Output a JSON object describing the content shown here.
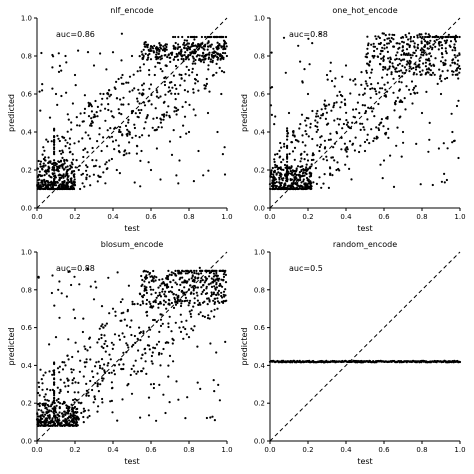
{
  "figure": {
    "background": "#ffffff",
    "point_color": "#000000",
    "diagonal_color": "#000000"
  },
  "chart_data": [
    {
      "type": "scatter",
      "title": "nlf_encode",
      "xlabel": "test",
      "ylabel": "predicted",
      "annotation": "auc=0.86",
      "xlim": [
        0.0,
        1.0
      ],
      "ylim": [
        0.0,
        1.0
      ],
      "xticks": [
        "0.0",
        "0.2",
        "0.4",
        "0.6",
        "0.8",
        "1.0"
      ],
      "yticks": [
        "0.0",
        "0.2",
        "0.4",
        "0.6",
        "0.8",
        "1.0"
      ],
      "reference_line": "y=x (dashed)",
      "points": [
        [
          0.02,
          0.12
        ],
        [
          0.04,
          0.14
        ],
        [
          0.06,
          0.12
        ],
        [
          0.08,
          0.13
        ],
        [
          0.1,
          0.12
        ],
        [
          0.12,
          0.15
        ],
        [
          0.14,
          0.12
        ],
        [
          0.16,
          0.18
        ],
        [
          0.18,
          0.14
        ],
        [
          0.2,
          0.12
        ],
        [
          0.22,
          0.2
        ],
        [
          0.24,
          0.13
        ],
        [
          0.26,
          0.16
        ],
        [
          0.28,
          0.12
        ],
        [
          0.3,
          0.22
        ],
        [
          0.32,
          0.14
        ],
        [
          0.34,
          0.3
        ],
        [
          0.36,
          0.13
        ],
        [
          0.38,
          0.25
        ],
        [
          0.4,
          0.35
        ],
        [
          0.42,
          0.2
        ],
        [
          0.44,
          0.4
        ],
        [
          0.46,
          0.28
        ],
        [
          0.48,
          0.45
        ],
        [
          0.5,
          0.5
        ],
        [
          0.52,
          0.38
        ],
        [
          0.54,
          0.55
        ],
        [
          0.56,
          0.6
        ],
        [
          0.58,
          0.48
        ],
        [
          0.6,
          0.65
        ],
        [
          0.62,
          0.7
        ],
        [
          0.64,
          0.58
        ],
        [
          0.66,
          0.72
        ],
        [
          0.68,
          0.75
        ],
        [
          0.7,
          0.66
        ],
        [
          0.72,
          0.78
        ],
        [
          0.74,
          0.8
        ],
        [
          0.76,
          0.7
        ],
        [
          0.78,
          0.82
        ],
        [
          0.8,
          0.84
        ],
        [
          0.82,
          0.76
        ],
        [
          0.84,
          0.85
        ],
        [
          0.86,
          0.86
        ],
        [
          0.88,
          0.8
        ],
        [
          0.9,
          0.85
        ],
        [
          0.92,
          0.86
        ],
        [
          0.94,
          0.82
        ],
        [
          0.96,
          0.86
        ],
        [
          0.98,
          0.85
        ],
        [
          0.1,
          0.6
        ],
        [
          0.15,
          0.8
        ],
        [
          0.2,
          0.7
        ],
        [
          0.25,
          0.5
        ],
        [
          0.3,
          0.75
        ],
        [
          0.35,
          0.6
        ],
        [
          0.4,
          0.82
        ],
        [
          0.45,
          0.7
        ],
        [
          0.5,
          0.8
        ],
        [
          0.55,
          0.3
        ],
        [
          0.6,
          0.2
        ],
        [
          0.65,
          0.15
        ],
        [
          0.7,
          0.35
        ],
        [
          0.75,
          0.25
        ],
        [
          0.8,
          0.4
        ],
        [
          0.85,
          0.3
        ],
        [
          0.9,
          0.5
        ],
        [
          0.95,
          0.4
        ],
        [
          0.12,
          0.3
        ],
        [
          0.18,
          0.45
        ],
        [
          0.22,
          0.35
        ],
        [
          0.28,
          0.55
        ],
        [
          0.33,
          0.42
        ],
        [
          0.38,
          0.62
        ],
        [
          0.43,
          0.52
        ],
        [
          0.47,
          0.66
        ],
        [
          0.53,
          0.72
        ],
        [
          0.58,
          0.78
        ],
        [
          0.63,
          0.82
        ],
        [
          0.67,
          0.84
        ],
        [
          0.72,
          0.85
        ],
        [
          0.77,
          0.86
        ],
        [
          0.83,
          0.83
        ],
        [
          0.87,
          0.78
        ],
        [
          0.93,
          0.7
        ],
        [
          0.97,
          0.6
        ]
      ],
      "cluster": {
        "x": [
          0.0,
          0.2
        ],
        "y": [
          0.1,
          0.25
        ]
      },
      "band": {
        "x": [
          0.55,
          1.0
        ],
        "y": [
          0.78,
          0.87
        ]
      }
    },
    {
      "type": "scatter",
      "title": "one_hot_encode",
      "xlabel": "test",
      "ylabel": "predicted",
      "annotation": "auc=0.88",
      "xlim": [
        0.0,
        1.0
      ],
      "ylim": [
        0.0,
        1.0
      ],
      "xticks": [
        "0.0",
        "0.2",
        "0.4",
        "0.6",
        "0.8",
        "1.0"
      ],
      "yticks": [
        "0.0",
        "0.2",
        "0.4",
        "0.6",
        "0.8",
        "1.0"
      ],
      "reference_line": "y=x (dashed)",
      "points": [
        [
          0.02,
          0.12
        ],
        [
          0.05,
          0.15
        ],
        [
          0.08,
          0.13
        ],
        [
          0.11,
          0.18
        ],
        [
          0.14,
          0.2
        ],
        [
          0.17,
          0.22
        ],
        [
          0.2,
          0.25
        ],
        [
          0.23,
          0.28
        ],
        [
          0.26,
          0.3
        ],
        [
          0.29,
          0.32
        ],
        [
          0.32,
          0.36
        ],
        [
          0.35,
          0.4
        ],
        [
          0.38,
          0.42
        ],
        [
          0.41,
          0.45
        ],
        [
          0.44,
          0.48
        ],
        [
          0.47,
          0.5
        ],
        [
          0.5,
          0.54
        ],
        [
          0.53,
          0.58
        ],
        [
          0.56,
          0.6
        ],
        [
          0.59,
          0.63
        ],
        [
          0.62,
          0.66
        ],
        [
          0.65,
          0.68
        ],
        [
          0.68,
          0.72
        ],
        [
          0.71,
          0.74
        ],
        [
          0.74,
          0.77
        ],
        [
          0.77,
          0.8
        ],
        [
          0.8,
          0.82
        ],
        [
          0.83,
          0.84
        ],
        [
          0.86,
          0.86
        ],
        [
          0.89,
          0.87
        ],
        [
          0.92,
          0.88
        ],
        [
          0.95,
          0.9
        ],
        [
          0.98,
          0.9
        ],
        [
          0.1,
          0.5
        ],
        [
          0.2,
          0.6
        ],
        [
          0.3,
          0.7
        ],
        [
          0.4,
          0.75
        ],
        [
          0.5,
          0.3
        ],
        [
          0.6,
          0.25
        ],
        [
          0.7,
          0.4
        ],
        [
          0.8,
          0.5
        ],
        [
          0.9,
          0.6
        ],
        [
          0.15,
          0.35
        ],
        [
          0.25,
          0.45
        ],
        [
          0.35,
          0.2
        ],
        [
          0.45,
          0.65
        ],
        [
          0.55,
          0.8
        ],
        [
          0.65,
          0.85
        ],
        [
          0.75,
          0.55
        ],
        [
          0.85,
          0.7
        ],
        [
          0.95,
          0.75
        ]
      ],
      "cluster": {
        "x": [
          0.0,
          0.22
        ],
        "y": [
          0.1,
          0.22
        ]
      },
      "band": {
        "x": [
          0.5,
          1.0
        ],
        "y": [
          0.7,
          0.92
        ]
      }
    },
    {
      "type": "scatter",
      "title": "blosum_encode",
      "xlabel": "test",
      "ylabel": "predicted",
      "annotation": "auc=0.88",
      "xlim": [
        0.0,
        1.0
      ],
      "ylim": [
        0.0,
        1.0
      ],
      "xticks": [
        "0.0",
        "0.2",
        "0.4",
        "0.6",
        "0.8",
        "1.0"
      ],
      "yticks": [
        "0.0",
        "0.2",
        "0.4",
        "0.6",
        "0.8",
        "1.0"
      ],
      "reference_line": "y=x (dashed)",
      "points": [
        [
          0.02,
          0.1
        ],
        [
          0.05,
          0.12
        ],
        [
          0.08,
          0.11
        ],
        [
          0.11,
          0.14
        ],
        [
          0.14,
          0.13
        ],
        [
          0.17,
          0.16
        ],
        [
          0.2,
          0.18
        ],
        [
          0.23,
          0.2
        ],
        [
          0.26,
          0.24
        ],
        [
          0.29,
          0.27
        ],
        [
          0.32,
          0.3
        ],
        [
          0.35,
          0.33
        ],
        [
          0.38,
          0.36
        ],
        [
          0.41,
          0.4
        ],
        [
          0.44,
          0.43
        ],
        [
          0.47,
          0.47
        ],
        [
          0.5,
          0.5
        ],
        [
          0.53,
          0.54
        ],
        [
          0.56,
          0.58
        ],
        [
          0.59,
          0.6
        ],
        [
          0.62,
          0.64
        ],
        [
          0.65,
          0.67
        ],
        [
          0.68,
          0.7
        ],
        [
          0.71,
          0.73
        ],
        [
          0.74,
          0.76
        ],
        [
          0.77,
          0.78
        ],
        [
          0.8,
          0.8
        ],
        [
          0.83,
          0.82
        ],
        [
          0.86,
          0.84
        ],
        [
          0.89,
          0.85
        ],
        [
          0.92,
          0.86
        ],
        [
          0.95,
          0.86
        ],
        [
          0.98,
          0.85
        ],
        [
          0.1,
          0.55
        ],
        [
          0.2,
          0.65
        ],
        [
          0.3,
          0.75
        ],
        [
          0.4,
          0.7
        ],
        [
          0.5,
          0.25
        ],
        [
          0.6,
          0.3
        ],
        [
          0.7,
          0.45
        ],
        [
          0.8,
          0.55
        ],
        [
          0.9,
          0.65
        ],
        [
          0.15,
          0.4
        ],
        [
          0.25,
          0.5
        ],
        [
          0.35,
          0.6
        ],
        [
          0.45,
          0.75
        ],
        [
          0.55,
          0.82
        ],
        [
          0.65,
          0.4
        ],
        [
          0.75,
          0.6
        ],
        [
          0.85,
          0.72
        ],
        [
          0.95,
          0.7
        ]
      ],
      "cluster": {
        "x": [
          0.0,
          0.22
        ],
        "y": [
          0.08,
          0.22
        ]
      },
      "band": {
        "x": [
          0.55,
          1.0
        ],
        "y": [
          0.72,
          0.9
        ]
      }
    },
    {
      "type": "scatter",
      "title": "random_encode",
      "xlabel": "test",
      "ylabel": "predicted",
      "annotation": "auc=0.5",
      "xlim": [
        0.0,
        1.0
      ],
      "ylim": [
        0.0,
        1.0
      ],
      "xticks": [
        "0.0",
        "0.2",
        "0.4",
        "0.6",
        "0.8",
        "1.0"
      ],
      "yticks": [
        "0.0",
        "0.2",
        "0.4",
        "0.6",
        "0.8",
        "1.0"
      ],
      "reference_line": "y=x (dashed)",
      "points": [],
      "constant_prediction": 0.42
    }
  ]
}
